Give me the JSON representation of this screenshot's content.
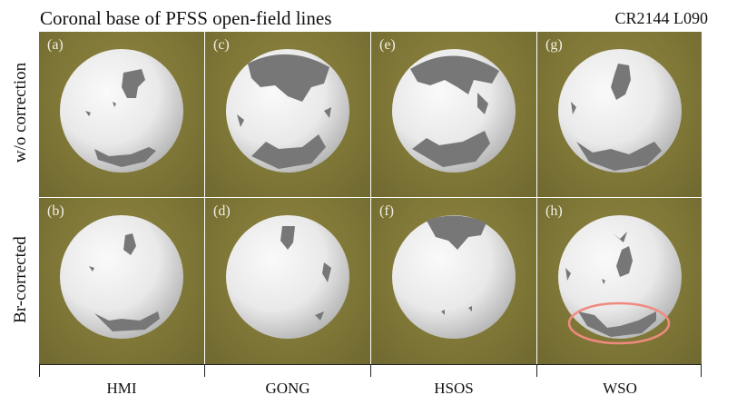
{
  "title": "Coronal base of PFSS open-field lines",
  "carrington": "CR2144 L090",
  "rows": [
    "w/o correction",
    "Br-corrected"
  ],
  "columns": [
    "HMI",
    "GONG",
    "HSOS",
    "WSO"
  ],
  "panels": [
    {
      "label": "(a)",
      "row": 0,
      "col": 0
    },
    {
      "label": "(c)",
      "row": 0,
      "col": 1
    },
    {
      "label": "(e)",
      "row": 0,
      "col": 2
    },
    {
      "label": "(g)",
      "row": 0,
      "col": 3
    },
    {
      "label": "(b)",
      "row": 1,
      "col": 0
    },
    {
      "label": "(d)",
      "row": 1,
      "col": 1
    },
    {
      "label": "(f)",
      "row": 1,
      "col": 2
    },
    {
      "label": "(h)",
      "row": 1,
      "col": 3
    }
  ],
  "colors": {
    "background": "#7e7636",
    "sphere_light": "#f7f7f7",
    "sphere_shade": "#bdbdbd",
    "open_field": "#777777",
    "highlight_ellipse": "#f08a80"
  }
}
